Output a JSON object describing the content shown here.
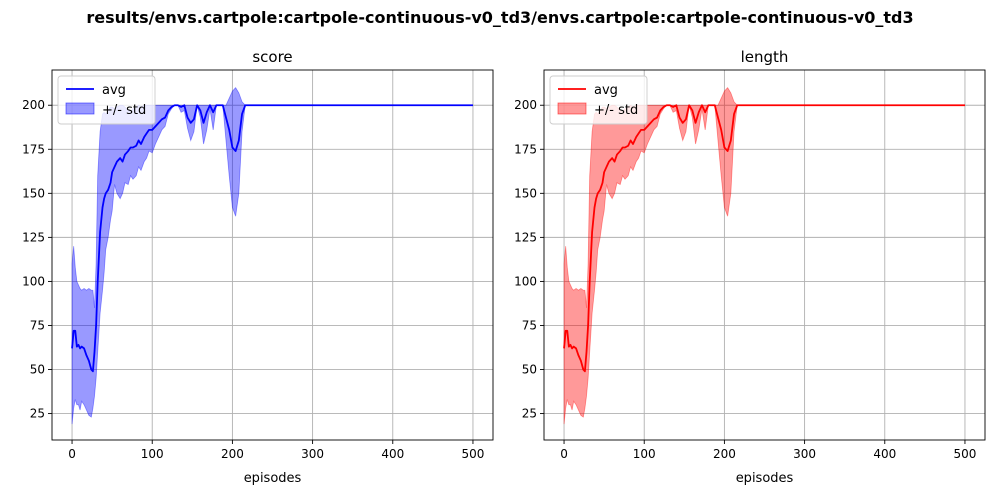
{
  "figure": {
    "suptitle": "results/envs.cartpole:cartpole-continuous-v0_td3/envs.cartpole:cartpole-continuous-v0_td3"
  },
  "chart_data": [
    {
      "type": "line",
      "title": "score",
      "xlabel": "episodes",
      "ylabel": "",
      "xlim": [
        -25,
        525
      ],
      "ylim": [
        10,
        220
      ],
      "xticks": [
        0,
        100,
        200,
        300,
        400,
        500
      ],
      "yticks": [
        25,
        50,
        75,
        100,
        125,
        150,
        175,
        200
      ],
      "grid": true,
      "legend_position": "upper-left",
      "color": "#0000ff",
      "series": [
        {
          "name": "avg",
          "x": [
            0,
            2,
            4,
            6,
            8,
            10,
            12,
            15,
            18,
            21,
            24,
            26,
            28,
            30,
            32,
            35,
            38,
            40,
            42,
            45,
            48,
            50,
            53,
            56,
            60,
            63,
            66,
            70,
            73,
            76,
            80,
            83,
            86,
            90,
            93,
            96,
            100,
            104,
            108,
            112,
            116,
            120,
            124,
            128,
            132,
            136,
            140,
            144,
            148,
            152,
            156,
            160,
            164,
            168,
            172,
            176,
            180,
            184,
            188,
            192,
            196,
            200,
            204,
            208,
            212,
            216,
            220,
            300,
            400,
            500
          ],
          "y": [
            62,
            72,
            72,
            63,
            64,
            62,
            63,
            62,
            58,
            55,
            50,
            49,
            60,
            75,
            100,
            128,
            142,
            147,
            150,
            152,
            156,
            162,
            165,
            168,
            170,
            168,
            172,
            174,
            176,
            176,
            177,
            180,
            178,
            182,
            184,
            186,
            186,
            188,
            190,
            192,
            193,
            197,
            199,
            200,
            200,
            199,
            200,
            193,
            190,
            192,
            200,
            197,
            190,
            196,
            200,
            196,
            200,
            200,
            200,
            193,
            186,
            176,
            174,
            180,
            195,
            200,
            200,
            200,
            200,
            200
          ]
        },
        {
          "name": "+/- std",
          "x": [
            0,
            2,
            4,
            6,
            8,
            10,
            12,
            15,
            18,
            21,
            24,
            26,
            28,
            30,
            32,
            35,
            38,
            40,
            42,
            45,
            48,
            50,
            53,
            56,
            60,
            63,
            66,
            70,
            73,
            76,
            80,
            83,
            86,
            90,
            93,
            96,
            100,
            104,
            108,
            112,
            116,
            120,
            124,
            128,
            132,
            136,
            140,
            144,
            148,
            152,
            156,
            160,
            164,
            168,
            172,
            176,
            180,
            184,
            188,
            192,
            196,
            200,
            204,
            208,
            212,
            216,
            220,
            300,
            400,
            500
          ],
          "upper": [
            110,
            120,
            108,
            100,
            98,
            96,
            95,
            96,
            95,
            96,
            95,
            95,
            85,
            110,
            160,
            185,
            195,
            196,
            195,
            197,
            199,
            199,
            198,
            199,
            200,
            200,
            199,
            197,
            196,
            198,
            199,
            200,
            199,
            200,
            200,
            200,
            200,
            200,
            200,
            200,
            200,
            200,
            200,
            200,
            200,
            200,
            200,
            200,
            200,
            200,
            200,
            200,
            200,
            200,
            200,
            200,
            200,
            200,
            200,
            200,
            204,
            208,
            210,
            207,
            202,
            200,
            200,
            200,
            200,
            200
          ],
          "lower": [
            19,
            28,
            33,
            30,
            30,
            27,
            32,
            30,
            27,
            24,
            23,
            28,
            35,
            45,
            60,
            82,
            95,
            105,
            118,
            125,
            135,
            140,
            155,
            150,
            147,
            150,
            156,
            155,
            160,
            158,
            160,
            165,
            163,
            168,
            170,
            174,
            173,
            178,
            182,
            186,
            188,
            195,
            198,
            200,
            200,
            196,
            197,
            187,
            180,
            185,
            200,
            193,
            178,
            186,
            198,
            186,
            200,
            200,
            200,
            180,
            160,
            142,
            137,
            150,
            185,
            200,
            200,
            200,
            200,
            200
          ]
        }
      ]
    },
    {
      "type": "line",
      "title": "length",
      "xlabel": "episodes",
      "ylabel": "",
      "xlim": [
        -25,
        525
      ],
      "ylim": [
        10,
        220
      ],
      "xticks": [
        0,
        100,
        200,
        300,
        400,
        500
      ],
      "yticks": [
        25,
        50,
        75,
        100,
        125,
        150,
        175,
        200
      ],
      "grid": true,
      "legend_position": "upper-left",
      "color": "#ff0000",
      "series": [
        {
          "name": "avg",
          "x": [
            0,
            2,
            4,
            6,
            8,
            10,
            12,
            15,
            18,
            21,
            24,
            26,
            28,
            30,
            32,
            35,
            38,
            40,
            42,
            45,
            48,
            50,
            53,
            56,
            60,
            63,
            66,
            70,
            73,
            76,
            80,
            83,
            86,
            90,
            93,
            96,
            100,
            104,
            108,
            112,
            116,
            120,
            124,
            128,
            132,
            136,
            140,
            144,
            148,
            152,
            156,
            160,
            164,
            168,
            172,
            176,
            180,
            184,
            188,
            192,
            196,
            200,
            204,
            208,
            212,
            216,
            220,
            300,
            400,
            500
          ],
          "y": [
            62,
            72,
            72,
            63,
            64,
            62,
            63,
            62,
            58,
            55,
            50,
            49,
            60,
            75,
            100,
            128,
            142,
            147,
            150,
            152,
            156,
            162,
            165,
            168,
            170,
            168,
            172,
            174,
            176,
            176,
            177,
            180,
            178,
            182,
            184,
            186,
            186,
            188,
            190,
            192,
            193,
            197,
            199,
            200,
            200,
            199,
            200,
            193,
            190,
            192,
            200,
            197,
            190,
            196,
            200,
            196,
            200,
            200,
            200,
            193,
            186,
            176,
            174,
            180,
            195,
            200,
            200,
            200,
            200,
            200
          ]
        },
        {
          "name": "+/- std",
          "x": [
            0,
            2,
            4,
            6,
            8,
            10,
            12,
            15,
            18,
            21,
            24,
            26,
            28,
            30,
            32,
            35,
            38,
            40,
            42,
            45,
            48,
            50,
            53,
            56,
            60,
            63,
            66,
            70,
            73,
            76,
            80,
            83,
            86,
            90,
            93,
            96,
            100,
            104,
            108,
            112,
            116,
            120,
            124,
            128,
            132,
            136,
            140,
            144,
            148,
            152,
            156,
            160,
            164,
            168,
            172,
            176,
            180,
            184,
            188,
            192,
            196,
            200,
            204,
            208,
            212,
            216,
            220,
            300,
            400,
            500
          ],
          "upper": [
            110,
            120,
            108,
            100,
            98,
            96,
            95,
            96,
            95,
            96,
            95,
            95,
            85,
            110,
            160,
            185,
            195,
            196,
            195,
            197,
            199,
            199,
            198,
            199,
            200,
            200,
            199,
            197,
            196,
            198,
            199,
            200,
            199,
            200,
            200,
            200,
            200,
            200,
            200,
            200,
            200,
            200,
            200,
            200,
            200,
            200,
            200,
            200,
            200,
            200,
            200,
            200,
            200,
            200,
            200,
            200,
            200,
            200,
            200,
            200,
            204,
            208,
            210,
            207,
            202,
            200,
            200,
            200,
            200,
            200
          ],
          "lower": [
            19,
            28,
            33,
            30,
            30,
            27,
            32,
            30,
            27,
            24,
            23,
            28,
            35,
            45,
            60,
            82,
            95,
            105,
            118,
            125,
            135,
            140,
            155,
            150,
            147,
            150,
            156,
            155,
            160,
            158,
            160,
            165,
            163,
            168,
            170,
            174,
            173,
            178,
            182,
            186,
            188,
            195,
            198,
            200,
            200,
            196,
            197,
            187,
            180,
            185,
            200,
            193,
            178,
            186,
            198,
            186,
            200,
            200,
            200,
            180,
            160,
            142,
            137,
            150,
            185,
            200,
            200,
            200,
            200,
            200
          ]
        }
      ]
    }
  ]
}
